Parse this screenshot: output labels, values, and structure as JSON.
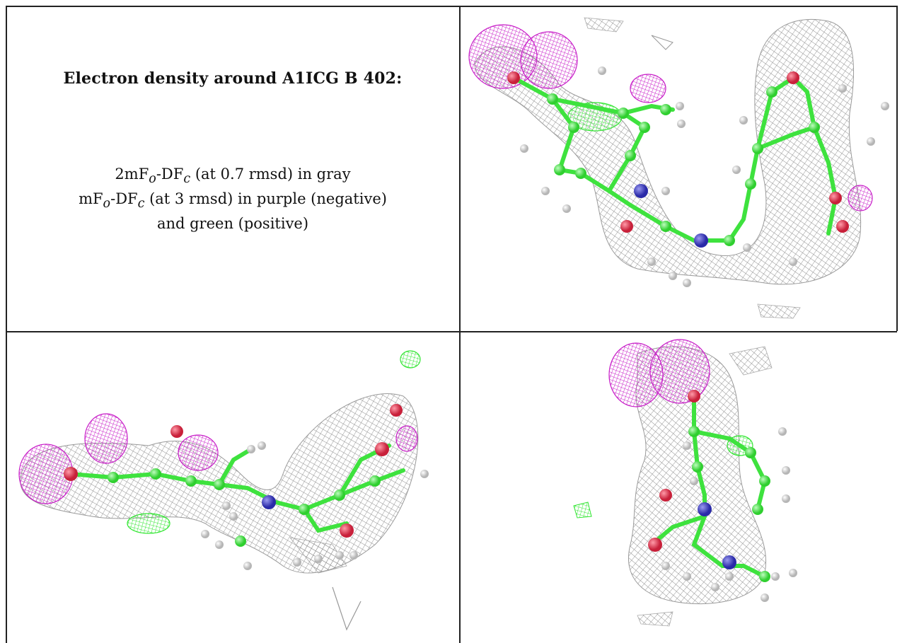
{
  "caption": {
    "title": "Electron density around A1ICG B 402:",
    "line1": "2mFo-DFc (at 0.7 rmsd) in gray",
    "line2": "mFo-DFc (at 3 rmsd) in purple (negative)",
    "line3": "and green (positive)"
  },
  "colors": {
    "map_2fofc": "#8c8c8c",
    "map_negative": "#c81ec8",
    "map_positive": "#32e632",
    "carbon": "#3ee23e",
    "nitrogen": "#3838c8",
    "oxygen": "#e0304a",
    "hydrogen": "#e8e8e8"
  },
  "panels": [
    {
      "name": "density-view-1",
      "icon": "molecule-density-render"
    },
    {
      "name": "density-view-2",
      "icon": "molecule-density-render"
    },
    {
      "name": "density-view-3",
      "icon": "molecule-density-render"
    }
  ]
}
